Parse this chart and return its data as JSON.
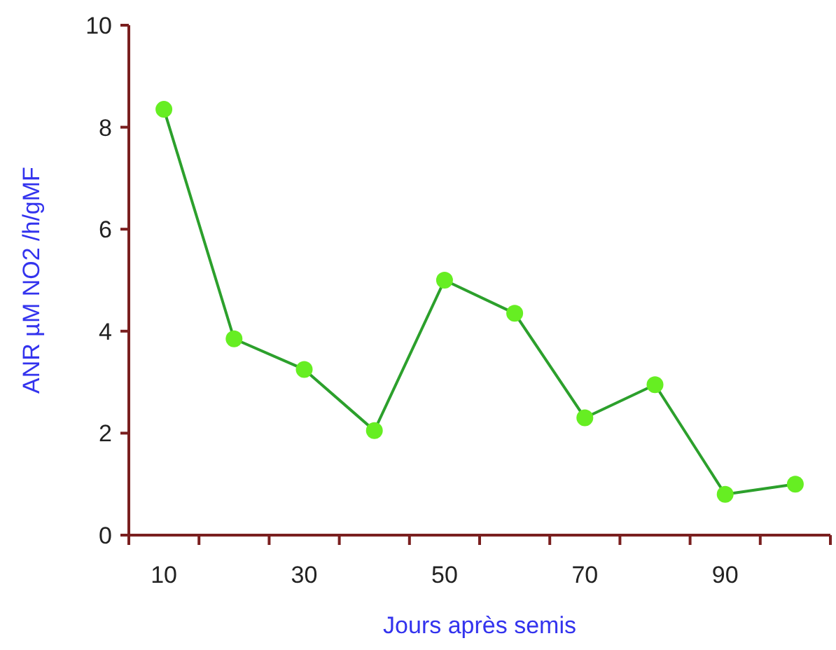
{
  "chart_data": {
    "type": "line",
    "xlabel": "Jours après semis",
    "ylabel": "ANR µM NO2 /h/gMF",
    "categories": [
      "10",
      null,
      "30",
      null,
      "50",
      null,
      "70",
      null,
      "90",
      null
    ],
    "series": [
      {
        "color": "#2ca02c",
        "values": [
          8.35,
          3.85,
          3.25,
          2.05,
          5.0,
          4.35,
          2.3,
          2.95,
          0.8,
          1.0
        ]
      }
    ],
    "ylim": [
      0,
      10
    ],
    "yticks": [
      0,
      2,
      4,
      6,
      8,
      10
    ],
    "grid": false,
    "marker": "circle",
    "line_style": "solid"
  }
}
